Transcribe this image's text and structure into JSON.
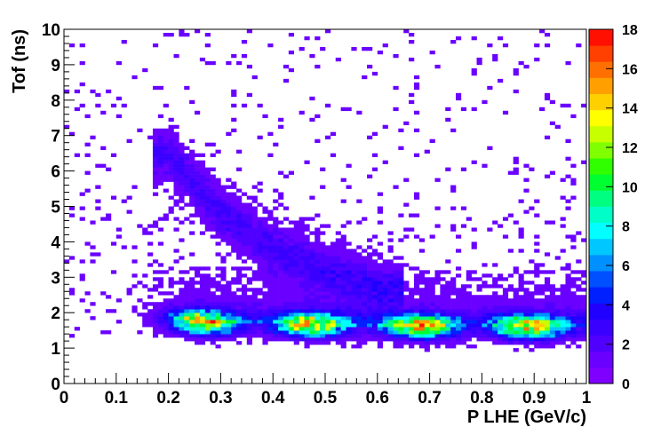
{
  "chart_data": {
    "type": "heatmap",
    "xlabel": "P LHE (GeV/c)",
    "ylabel": "Tof (ns)",
    "xlim": [
      0,
      1
    ],
    "ylim": [
      0,
      10
    ],
    "x_ticks": [
      "0",
      "0.1",
      "0.2",
      "0.3",
      "0.4",
      "0.5",
      "0.6",
      "0.7",
      "0.8",
      "0.9",
      "1"
    ],
    "y_ticks": [
      "0",
      "1",
      "2",
      "3",
      "4",
      "5",
      "6",
      "7",
      "8",
      "9",
      "10"
    ],
    "colorbar": {
      "range": [
        0,
        18
      ],
      "ticks": [
        "0",
        "2",
        "4",
        "6",
        "8",
        "10",
        "12",
        "14",
        "16",
        "18"
      ]
    },
    "bins": {
      "x_bins": 100,
      "y_bins": 100
    },
    "density_description_values": {
      "band_center_tof_at_p": [
        [
          0.15,
          1.8
        ],
        [
          0.3,
          1.7
        ],
        [
          0.5,
          1.65
        ],
        [
          0.7,
          1.6
        ],
        [
          0.9,
          1.6
        ],
        [
          1.0,
          1.6
        ]
      ],
      "diagonal_band_tof_at_p": [
        [
          0.2,
          6.5
        ],
        [
          0.3,
          4.8
        ],
        [
          0.4,
          3.8
        ],
        [
          0.5,
          3.2
        ],
        [
          0.6,
          2.7
        ]
      ],
      "peak_count": 18
    }
  }
}
